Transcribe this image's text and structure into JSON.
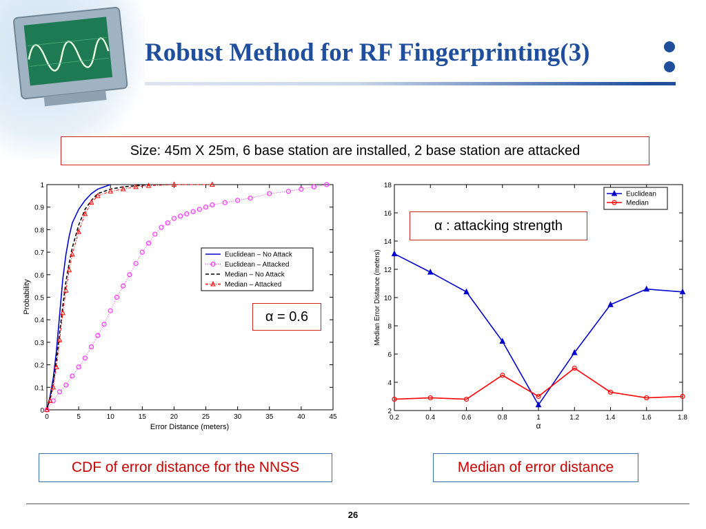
{
  "slide": {
    "title": "Robust Method for RF Fingerprinting(3)",
    "subtitle_box": "Size: 45m X 25m, 6 base station are installed, 2 base station are attacked",
    "alpha_note": "α : attacking strength",
    "alpha_value": "α = 0.6",
    "caption_left": "CDF of error distance for the NNSS",
    "caption_right": "Median of error distance",
    "page_number": "26"
  },
  "chart_data": [
    {
      "type": "line",
      "xlabel": "Error Distance (meters)",
      "ylabel": "Probability",
      "xlim": [
        0,
        45
      ],
      "ylim": [
        0,
        1
      ],
      "xticks": [
        0,
        5,
        10,
        15,
        20,
        25,
        30,
        35,
        40,
        45
      ],
      "yticks": [
        0,
        0.1,
        0.2,
        0.3,
        0.4,
        0.5,
        0.6,
        0.7,
        0.8,
        0.9,
        1
      ],
      "ytick_labels": [
        "0",
        "0.1",
        "0.2",
        "0.3",
        "0.4",
        "0.5",
        "0.6",
        "0.7",
        "0.8",
        "0.9",
        "1"
      ],
      "grid": false,
      "legend": "right",
      "series": [
        {
          "name": "Euclidean – No Attack",
          "color": "#0000cc",
          "style": "solid",
          "x": [
            0,
            0.5,
            1,
            1.5,
            2,
            2.5,
            3,
            3.5,
            4,
            5,
            6,
            7,
            8,
            9,
            10
          ],
          "y": [
            0,
            0.06,
            0.14,
            0.26,
            0.42,
            0.58,
            0.69,
            0.77,
            0.83,
            0.89,
            0.93,
            0.96,
            0.98,
            0.99,
            1.0
          ]
        },
        {
          "name": "Euclidean – Attacked",
          "color": "#ff33ff",
          "style": "dotted-circle",
          "x": [
            0,
            1,
            2,
            3,
            4,
            5,
            6,
            7,
            8,
            9,
            10,
            11,
            12,
            13,
            14,
            15,
            16,
            17,
            18,
            19,
            20,
            21,
            22,
            23,
            24,
            25,
            26,
            28,
            30,
            32,
            35,
            38,
            40,
            42,
            44
          ],
          "y": [
            0,
            0.04,
            0.08,
            0.11,
            0.15,
            0.19,
            0.23,
            0.28,
            0.33,
            0.38,
            0.44,
            0.5,
            0.55,
            0.6,
            0.65,
            0.7,
            0.74,
            0.78,
            0.81,
            0.83,
            0.85,
            0.86,
            0.87,
            0.88,
            0.89,
            0.9,
            0.91,
            0.92,
            0.93,
            0.94,
            0.96,
            0.97,
            0.98,
            0.99,
            1.0
          ]
        },
        {
          "name": "Median – No Attack",
          "color": "#000000",
          "style": "dashed",
          "x": [
            0,
            0.5,
            1,
            1.5,
            2,
            2.5,
            3,
            3.5,
            4,
            5,
            6,
            7,
            8,
            10,
            12,
            14,
            16
          ],
          "y": [
            0,
            0.05,
            0.12,
            0.22,
            0.34,
            0.46,
            0.57,
            0.65,
            0.72,
            0.82,
            0.89,
            0.93,
            0.96,
            0.98,
            0.99,
            0.995,
            1.0
          ]
        },
        {
          "name": "Median – Attacked",
          "color": "#ff0000",
          "style": "dashdot-triangle",
          "x": [
            0,
            0.5,
            1,
            1.5,
            2,
            2.5,
            3,
            3.5,
            4,
            5,
            6,
            7,
            8,
            10,
            12,
            14,
            16,
            20,
            26
          ],
          "y": [
            0,
            0.04,
            0.1,
            0.19,
            0.31,
            0.43,
            0.53,
            0.62,
            0.69,
            0.79,
            0.87,
            0.92,
            0.95,
            0.97,
            0.98,
            0.99,
            0.995,
            1.0,
            1.0
          ]
        }
      ]
    },
    {
      "type": "line",
      "xlabel": "α",
      "ylabel": "Median Error Distance (meters)",
      "xlim": [
        0.2,
        1.8
      ],
      "ylim": [
        2,
        18
      ],
      "xticks": [
        0.2,
        0.4,
        0.6,
        0.8,
        1,
        1.2,
        1.4,
        1.6,
        1.8
      ],
      "yticks": [
        2,
        4,
        6,
        8,
        10,
        12,
        14,
        16,
        18
      ],
      "grid": false,
      "legend": "top-right",
      "series": [
        {
          "name": "Euclidean",
          "color": "#0000cc",
          "marker": "triangle",
          "x": [
            0.2,
            0.4,
            0.6,
            0.8,
            1.0,
            1.2,
            1.4,
            1.6,
            1.8
          ],
          "y": [
            13.1,
            11.8,
            10.4,
            6.9,
            2.4,
            6.1,
            9.5,
            10.6,
            10.4
          ]
        },
        {
          "name": "Median",
          "color": "#ff0000",
          "marker": "circle",
          "x": [
            0.2,
            0.4,
            0.6,
            0.8,
            1.0,
            1.2,
            1.4,
            1.6,
            1.8
          ],
          "y": [
            2.8,
            2.9,
            2.8,
            4.5,
            3.0,
            5.0,
            3.3,
            2.9,
            3.0
          ]
        }
      ]
    }
  ]
}
